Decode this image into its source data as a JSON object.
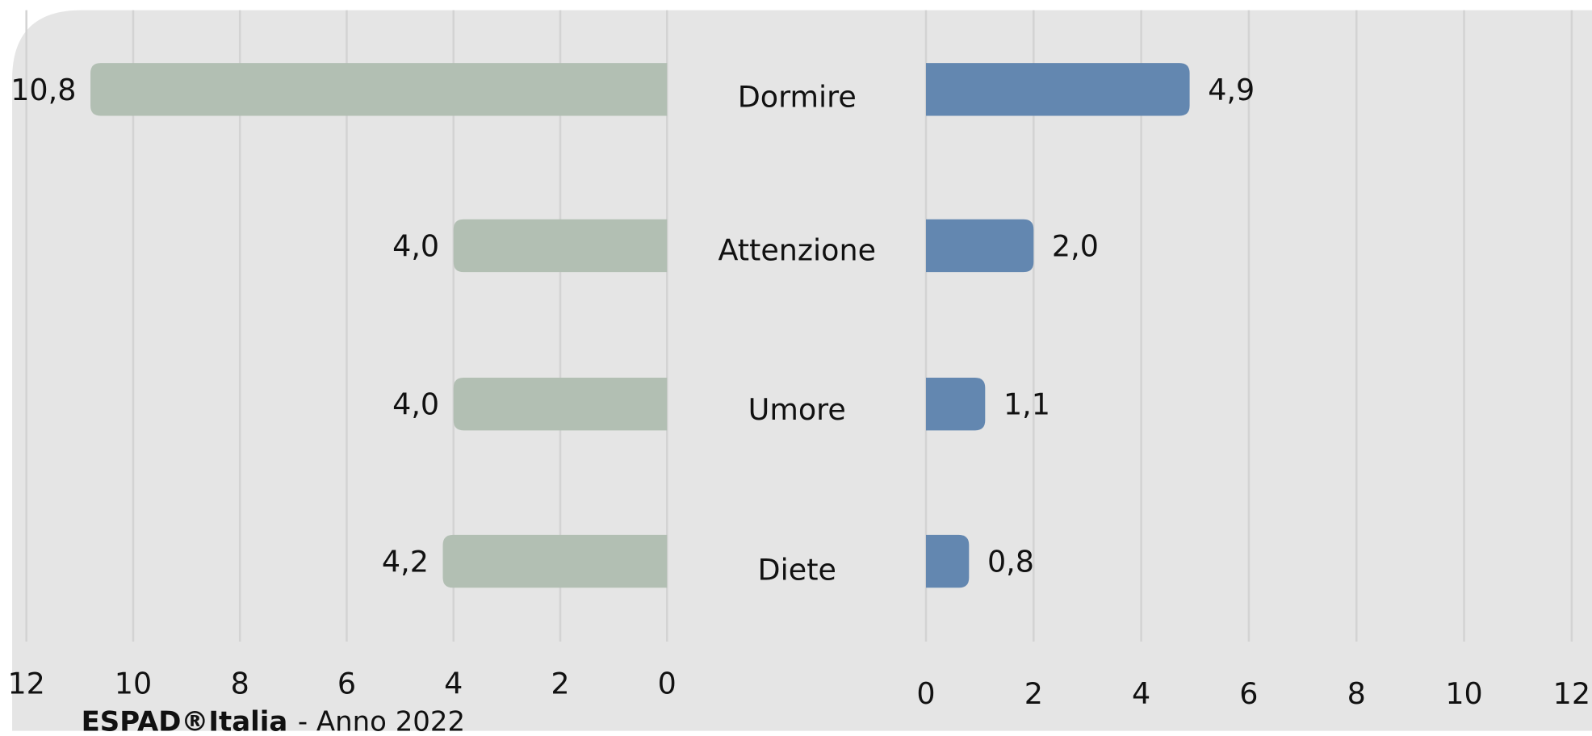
{
  "chart_data": {
    "type": "butterfly_bar",
    "categories": [
      "Dormire",
      "Attenzione",
      "Umore",
      "Diete"
    ],
    "series": [
      {
        "color": "#b2bfb3",
        "side": "left",
        "values": [
          10.8,
          4.0,
          4.0,
          4.2
        ],
        "value_labels": [
          "10,8",
          "4,0",
          "4,0",
          "4,2"
        ]
      },
      {
        "color": "#6387b0",
        "side": "right",
        "values": [
          4.9,
          2.0,
          1.1,
          0.8
        ],
        "value_labels": [
          "4,9",
          "2,0",
          "1,1",
          "0,8"
        ]
      }
    ],
    "xlim": [
      0,
      12
    ],
    "xticks": [
      0,
      2,
      4,
      6,
      8,
      10,
      12
    ],
    "grid": true,
    "source": {
      "bold": "ESPAD®Italia",
      "text": "- Anno 2022"
    }
  }
}
